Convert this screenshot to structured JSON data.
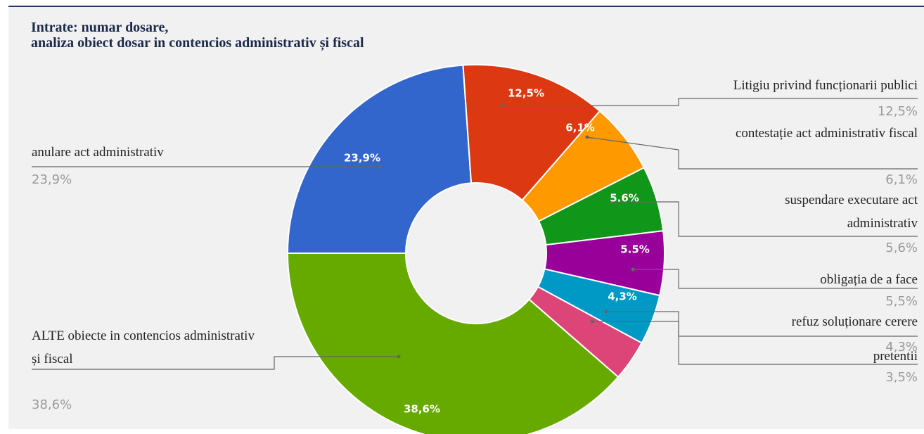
{
  "chart_data": {
    "type": "donut",
    "title_lines": [
      "Intrate: numar dosare,",
      "analiza obiect dosar in contencios administrativ și fiscal"
    ],
    "categories": [
      "anulare act administrativ",
      "Litigiu privind funcționarii publici",
      "contestație act administrativ fiscal",
      "suspendare executare act administrativ",
      "obligația de a face",
      "refuz soluționare cerere",
      "pretentii",
      "ALTE obiecte in contencios administrativ și fiscal"
    ],
    "values": [
      23.9,
      12.5,
      6.1,
      5.6,
      5.5,
      4.3,
      3.5,
      38.6
    ],
    "value_labels": [
      "23,9%",
      "12,5%",
      "6,1%",
      "5,6%",
      "5,5%",
      "4,3%",
      "3,5%",
      "38,6%"
    ],
    "inner_labels": [
      "23,9%",
      "12,5%",
      "6,1%",
      "5.6%",
      "5.5%",
      "4,3%",
      null,
      "38,6%"
    ],
    "colors": [
      "#3366cc",
      "#dc3912",
      "#ff9900",
      "#109618",
      "#990099",
      "#0099c6",
      "#dd4477",
      "#66aa00"
    ]
  }
}
